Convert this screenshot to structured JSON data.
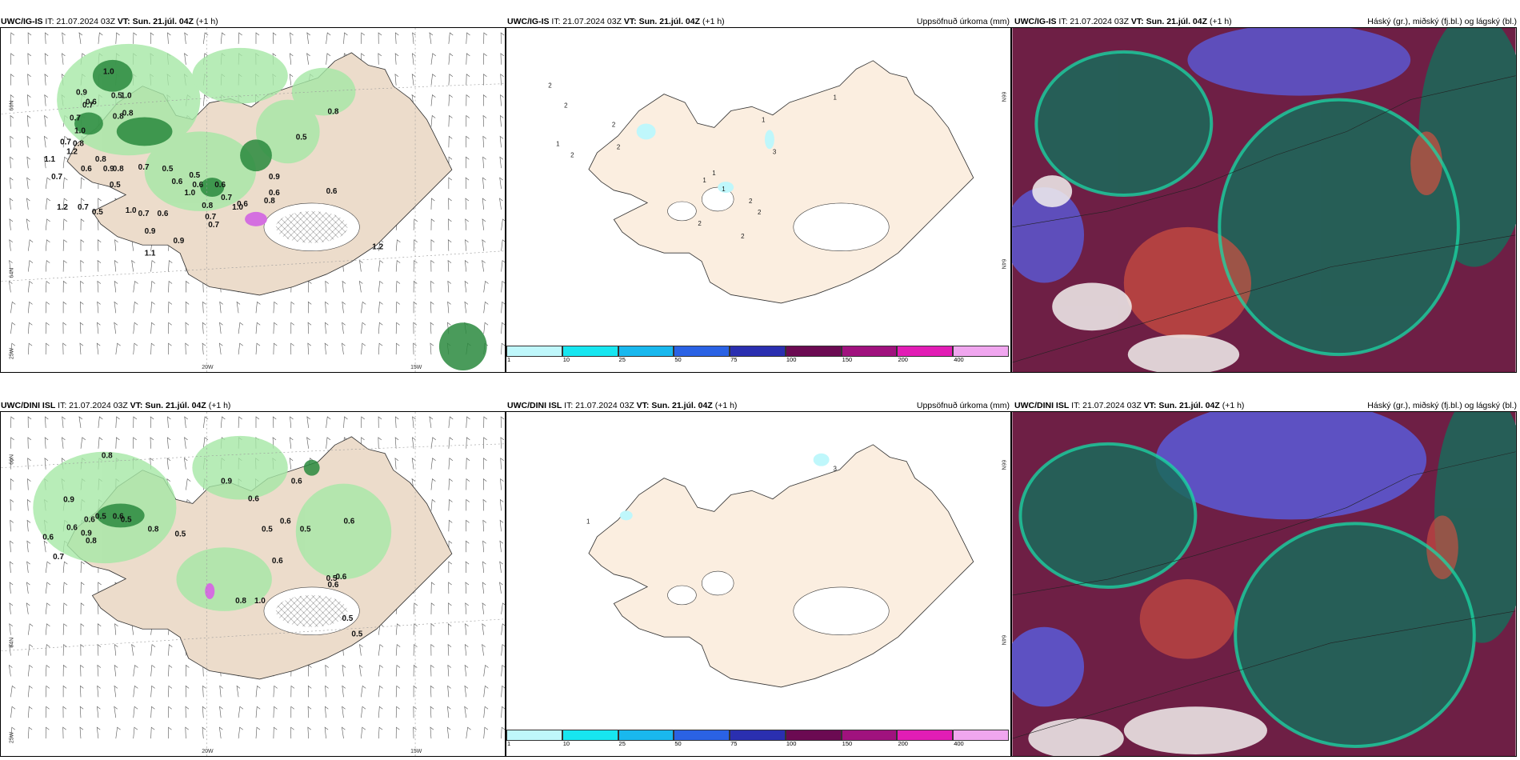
{
  "panels": {
    "top_left": {
      "model": "UWC/IG-IS",
      "it": "IT: 21.07.2024 03Z",
      "vt": "VT: Sun. 21.júl. 04Z",
      "offset": "(+1 h)",
      "right": ""
    },
    "top_mid": {
      "model": "UWC/IG-IS",
      "it": "IT: 21.07.2024 03Z",
      "vt": "VT: Sun. 21.júl. 04Z",
      "offset": "(+1 h)",
      "right": "Uppsöfnuð úrkoma (mm)"
    },
    "top_right": {
      "model": "UWC/IG-IS",
      "it": "IT: 21.07.2024 03Z",
      "vt": "VT: Sun. 21.júl. 04Z",
      "offset": "(+1 h)",
      "right": "Háský (gr.), miðský (fj.bl.) og lágský (bl.)"
    },
    "bot_left": {
      "model": "UWC/DINI ISL",
      "it": "IT: 21.07.2024 03Z",
      "vt": "VT: Sun. 21.júl. 04Z",
      "offset": "(+1 h)",
      "right": ""
    },
    "bot_mid": {
      "model": "UWC/DINI ISL",
      "it": "IT: 21.07.2024 03Z",
      "vt": "VT: Sun. 21.júl. 04Z",
      "offset": "(+1 h)",
      "right": "Uppsöfnuð úrkoma (mm)"
    },
    "bot_right": {
      "model": "UWC/DINI ISL",
      "it": "IT: 21.07.2024 03Z",
      "vt": "VT: Sun. 21.júl. 04Z",
      "offset": "(+1 h)",
      "right": "Háský (gr.), miðský (fj.bl.) og lágský (bl.)"
    }
  },
  "axis_labels": {
    "lat66": "66N",
    "lat64": "64N",
    "lon25": "25W",
    "lon20": "20W",
    "lon15": "15W"
  },
  "colorbar": {
    "ticks": [
      "1",
      "10",
      "25",
      "50",
      "75",
      "100",
      "150",
      "200",
      "400"
    ],
    "colors": [
      "#bff7fb",
      "#17e6f0",
      "#19b8ee",
      "#2a62e4",
      "#2a2fb0",
      "#6b0a52",
      "#a0127e",
      "#e21db5",
      "#f0a6ef"
    ]
  },
  "top_left_labels": [
    "1.0",
    "0.9",
    "0.6",
    "0.5",
    "1.0",
    "0.8",
    "0.7",
    "0.8",
    "0.7",
    "1.0",
    "0.8",
    "0.7",
    "1.2",
    "1.1",
    "0.7",
    "0.8",
    "0.6",
    "0.8",
    "0.9",
    "0.5",
    "0.7",
    "0.5",
    "0.6",
    "0.5",
    "1.0",
    "0.6",
    "0.6",
    "0.7",
    "0.8",
    "0.6",
    "1.2",
    "0.7",
    "0.5",
    "1.0",
    "0.7",
    "0.6",
    "0.7",
    "0.9",
    "1.0",
    "0.9",
    "0.7",
    "0.8",
    "0.9",
    "0.6",
    "1.1",
    "0.5",
    "0.8",
    "0.6",
    "1.2"
  ],
  "top_mid_labels": [
    "2",
    "2",
    "2",
    "1",
    "2",
    "2",
    "3",
    "1",
    "1",
    "1",
    "2",
    "2",
    "2",
    "2",
    "1",
    "1"
  ],
  "bot_left_labels": [
    "0.8",
    "0.9",
    "0.6",
    "0.5",
    "0.6",
    "0.5",
    "0.8",
    "0.9",
    "0.6",
    "0.6",
    "0.7",
    "0.8",
    "0.5",
    "0.9",
    "0.6",
    "0.5",
    "0.6",
    "0.6",
    "0.5",
    "0.6",
    "0.6",
    "0.6",
    "0.5",
    "0.5",
    "0.6",
    "0.8",
    "1.0",
    "0.5"
  ],
  "bot_mid_labels": [
    "3",
    "1"
  ]
}
